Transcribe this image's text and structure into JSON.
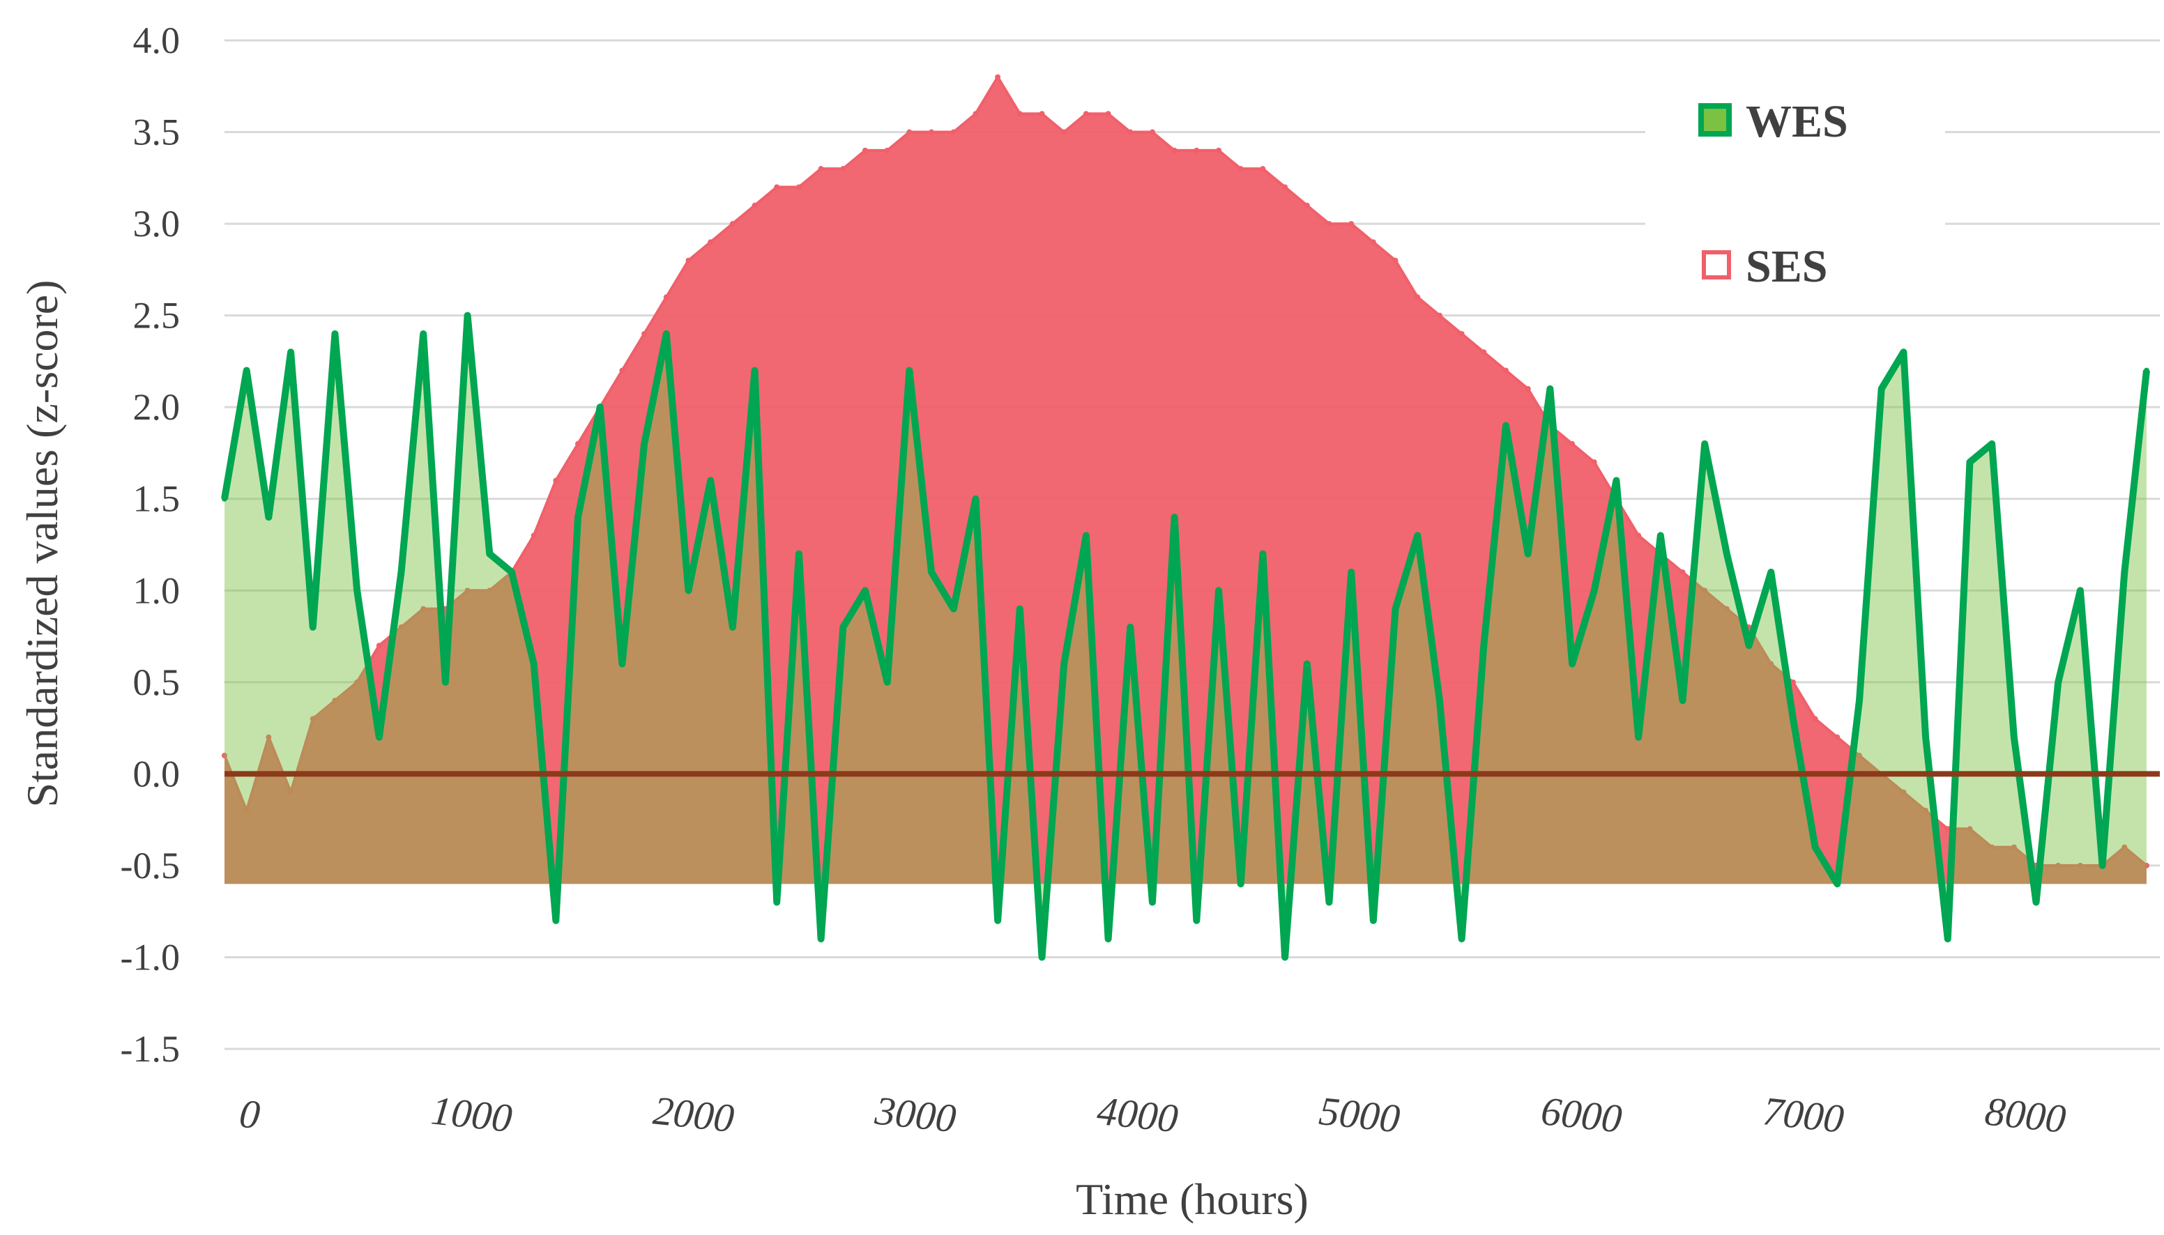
{
  "chart_data": {
    "type": "area",
    "xlabel": "Time (hours)",
    "ylabel": "Standardized values (z-score)",
    "xlim": [
      0,
      8760
    ],
    "ylim": [
      -1.5,
      4.0
    ],
    "x_ticks": [
      "0",
      "1000",
      "2000",
      "3000",
      "4000",
      "5000",
      "6000",
      "7000",
      "8000"
    ],
    "x_tick_values": [
      0,
      1000,
      2000,
      3000,
      4000,
      5000,
      6000,
      7000,
      8000
    ],
    "y_ticks": [
      "4.0",
      "3.5",
      "3.0",
      "2.5",
      "2.0",
      "1.5",
      "1.0",
      "0.5",
      "0.0",
      "-0.5",
      "-1.0",
      "-1.5"
    ],
    "y_tick_values": [
      4.0,
      3.5,
      3.0,
      2.5,
      2.0,
      1.5,
      1.0,
      0.5,
      0.0,
      -0.5,
      -1.0,
      -1.5
    ],
    "grid": "horizontal",
    "legend_position": "top-right",
    "series": [
      {
        "name": "WES",
        "style": "line-with-fill",
        "line_color": "#00A651",
        "fill_color": "#7CC242",
        "x": [
          0,
          100,
          200,
          300,
          400,
          500,
          600,
          700,
          800,
          900,
          1000,
          1100,
          1200,
          1300,
          1400,
          1500,
          1600,
          1700,
          1800,
          1900,
          2000,
          2100,
          2200,
          2300,
          2400,
          2500,
          2600,
          2700,
          2800,
          2900,
          3000,
          3100,
          3200,
          3300,
          3400,
          3500,
          3600,
          3700,
          3800,
          3900,
          4000,
          4100,
          4200,
          4300,
          4400,
          4500,
          4600,
          4700,
          4800,
          4900,
          5000,
          5100,
          5200,
          5300,
          5400,
          5500,
          5600,
          5700,
          5800,
          5900,
          6000,
          6100,
          6200,
          6300,
          6400,
          6500,
          6600,
          6700,
          6800,
          6900,
          7000,
          7100,
          7200,
          7300,
          7400,
          7500,
          7600,
          7700,
          7800,
          7900,
          8000,
          8100,
          8200,
          8300,
          8400,
          8500,
          8600,
          8700
        ],
        "values": [
          1.5,
          2.2,
          1.4,
          2.3,
          0.8,
          2.4,
          1.0,
          0.2,
          1.1,
          2.4,
          0.5,
          2.5,
          1.2,
          1.1,
          0.6,
          -0.8,
          1.4,
          2.0,
          0.6,
          1.8,
          2.4,
          1.0,
          1.6,
          0.8,
          2.2,
          -0.7,
          1.2,
          -0.9,
          0.8,
          1.0,
          0.5,
          2.2,
          1.1,
          0.9,
          1.5,
          -0.8,
          0.9,
          -1.0,
          0.6,
          1.3,
          -0.9,
          0.8,
          -0.7,
          1.4,
          -0.8,
          1.0,
          -0.6,
          1.2,
          -1.0,
          0.6,
          -0.7,
          1.1,
          -0.8,
          0.9,
          1.3,
          0.4,
          -0.9,
          0.7,
          1.9,
          1.2,
          2.1,
          0.6,
          1.0,
          1.6,
          0.2,
          1.3,
          0.4,
          1.8,
          1.2,
          0.7,
          1.1,
          0.3,
          -0.4,
          -0.6,
          0.4,
          2.1,
          2.3,
          0.2,
          -0.9,
          1.7,
          1.8,
          0.2,
          -0.7,
          0.5,
          1.0,
          -0.5,
          1.1,
          2.2
        ]
      },
      {
        "name": "SES",
        "style": "filled-area",
        "line_color": "#F0606A",
        "fill_color": "#F0606A",
        "x": [
          0,
          100,
          200,
          300,
          400,
          500,
          600,
          700,
          800,
          900,
          1000,
          1100,
          1200,
          1300,
          1400,
          1500,
          1600,
          1700,
          1800,
          1900,
          2000,
          2100,
          2200,
          2300,
          2400,
          2500,
          2600,
          2700,
          2800,
          2900,
          3000,
          3100,
          3200,
          3300,
          3400,
          3500,
          3600,
          3700,
          3800,
          3900,
          4000,
          4100,
          4200,
          4300,
          4400,
          4500,
          4600,
          4700,
          4800,
          4900,
          5000,
          5100,
          5200,
          5300,
          5400,
          5500,
          5600,
          5700,
          5800,
          5900,
          6000,
          6100,
          6200,
          6300,
          6400,
          6500,
          6600,
          6700,
          6800,
          6900,
          7000,
          7100,
          7200,
          7300,
          7400,
          7500,
          7600,
          7700,
          7800,
          7900,
          8000,
          8100,
          8200,
          8300,
          8400,
          8500,
          8600,
          8700
        ],
        "values": [
          0.1,
          -0.2,
          0.2,
          -0.1,
          0.3,
          0.4,
          0.5,
          0.7,
          0.8,
          0.9,
          0.9,
          1.0,
          1.0,
          1.1,
          1.3,
          1.6,
          1.8,
          2.0,
          2.2,
          2.4,
          2.6,
          2.8,
          2.9,
          3.0,
          3.1,
          3.2,
          3.2,
          3.3,
          3.3,
          3.4,
          3.4,
          3.5,
          3.5,
          3.5,
          3.6,
          3.8,
          3.6,
          3.6,
          3.5,
          3.6,
          3.6,
          3.5,
          3.5,
          3.4,
          3.4,
          3.4,
          3.3,
          3.3,
          3.2,
          3.1,
          3.0,
          3.0,
          2.9,
          2.8,
          2.6,
          2.5,
          2.4,
          2.3,
          2.2,
          2.1,
          1.9,
          1.8,
          1.7,
          1.5,
          1.3,
          1.2,
          1.1,
          1.0,
          0.9,
          0.8,
          0.6,
          0.5,
          0.3,
          0.2,
          0.1,
          0.0,
          -0.1,
          -0.2,
          -0.3,
          -0.3,
          -0.4,
          -0.4,
          -0.5,
          -0.5,
          -0.5,
          -0.5,
          -0.4,
          -0.5
        ]
      }
    ],
    "baseline": -0.6
  }
}
